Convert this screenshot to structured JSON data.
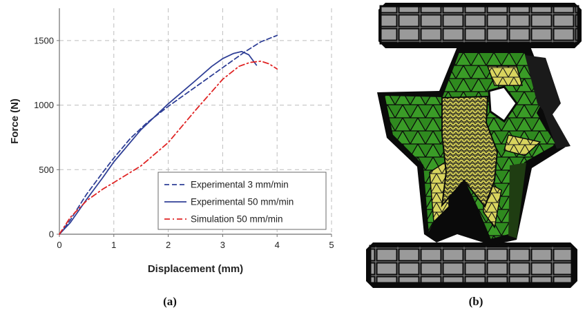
{
  "panels": {
    "a_caption": "(a)",
    "b_caption": "(b)"
  },
  "chart_data": {
    "type": "line",
    "xlabel": "Displacement (mm)",
    "ylabel": "Force (N)",
    "xlim": [
      0,
      5
    ],
    "ylim": [
      0,
      1750
    ],
    "xticks": [
      0,
      1,
      2,
      3,
      4,
      5
    ],
    "yticks": [
      0,
      500,
      1000,
      1500
    ],
    "grid": true,
    "legend_position": "bottom-right",
    "series": [
      {
        "name": "Experimental 3 mm/min",
        "color": "#2f3f96",
        "dash": "dashed",
        "x": [
          0,
          0.2,
          0.5,
          0.8,
          1.0,
          1.3,
          1.6,
          2.0,
          2.5,
          3.0,
          3.4,
          3.7,
          4.0
        ],
        "y": [
          0,
          110,
          310,
          480,
          590,
          740,
          860,
          990,
          1140,
          1290,
          1410,
          1490,
          1540
        ]
      },
      {
        "name": "Experimental 50 mm/min",
        "color": "#2f3f96",
        "dash": "solid",
        "x": [
          0,
          0.2,
          0.5,
          0.8,
          1.0,
          1.5,
          2.0,
          2.5,
          2.8,
          3.0,
          3.2,
          3.35,
          3.48,
          3.55,
          3.62
        ],
        "y": [
          0,
          90,
          270,
          440,
          560,
          810,
          1010,
          1190,
          1300,
          1360,
          1400,
          1415,
          1390,
          1350,
          1310
        ]
      },
      {
        "name": "Simulation 50 mm/min",
        "color": "#e02424",
        "dash": "dashdot",
        "x": [
          0,
          0.2,
          0.5,
          0.8,
          1.0,
          1.5,
          2.0,
          2.5,
          3.0,
          3.3,
          3.5,
          3.7,
          3.85,
          4.0
        ],
        "y": [
          0,
          130,
          260,
          350,
          400,
          530,
          710,
          960,
          1200,
          1300,
          1330,
          1340,
          1320,
          1280
        ]
      }
    ]
  },
  "mesh_colors": {
    "green": "#2f8a1f",
    "yellow": "#d8d45e",
    "grey": "#8a8a8a",
    "dark": "#0a0a0a"
  }
}
